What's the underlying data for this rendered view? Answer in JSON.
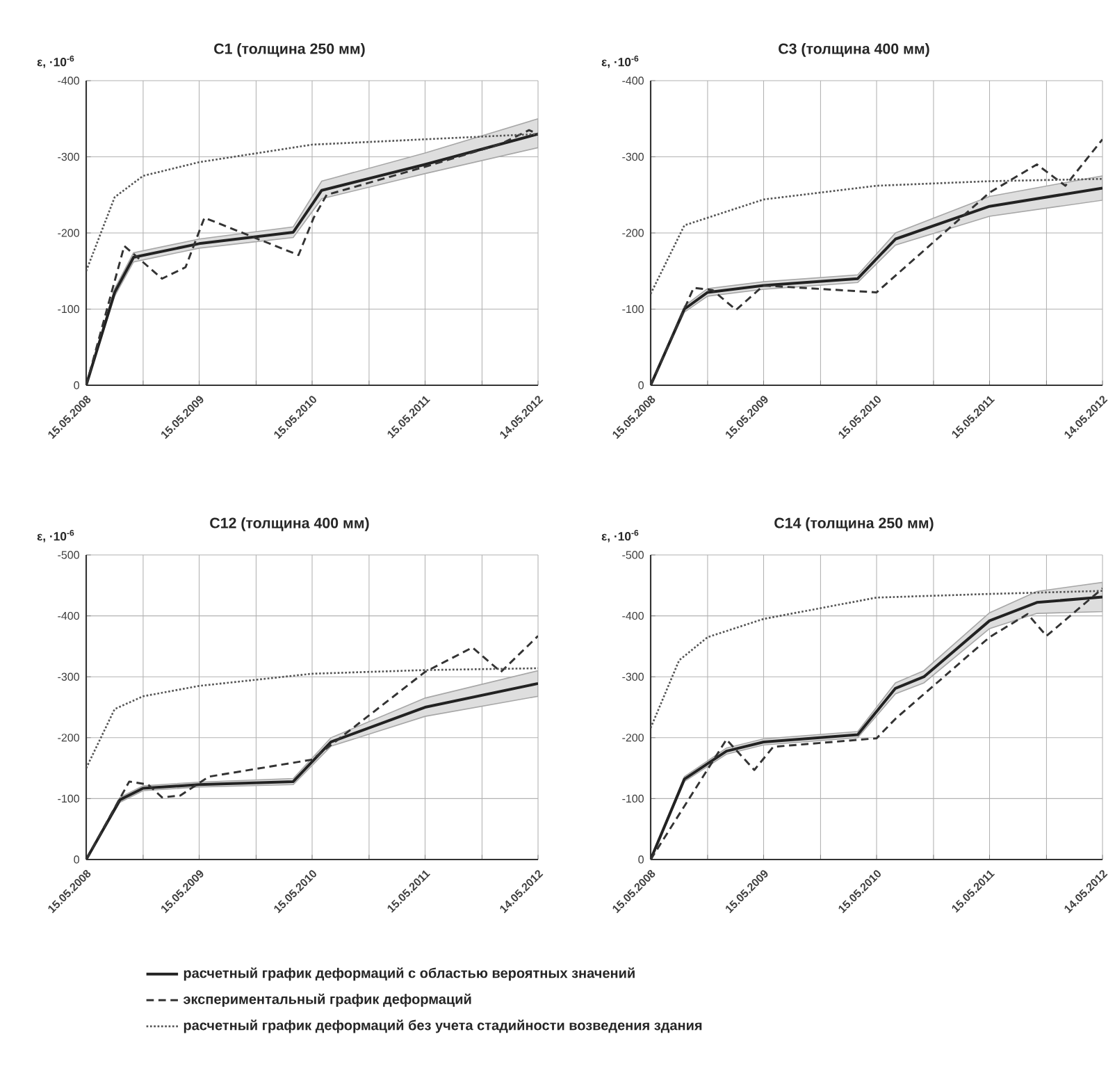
{
  "chart_data": [
    {
      "type": "line",
      "title": "C1  (толщина 250 мм)",
      "ylabel": "ε, ·10$^{-6}$",
      "xlim": [
        "2008-05-15",
        "2012-05-14"
      ],
      "ylim": [
        0,
        -400
      ],
      "yticks": [
        -400,
        -300,
        -200,
        -100,
        0
      ],
      "xticks": [
        {
          "value": "2008-05-15",
          "label": "15.05.2008"
        },
        {
          "value": "2008-11-15",
          "label": null
        },
        {
          "value": "2009-05-15",
          "label": "15.05.2009"
        },
        {
          "value": "2009-11-15",
          "label": null
        },
        {
          "value": "2010-05-15",
          "label": "15.05.2010"
        },
        {
          "value": "2010-11-15",
          "label": null
        },
        {
          "value": "2011-05-15",
          "label": "15.05.2011"
        },
        {
          "value": "2011-11-15",
          "label": null
        },
        {
          "value": "2012-05-14",
          "label": "14.05.2012"
        }
      ],
      "grid": true,
      "legend": "bottom",
      "series": [
        {
          "name": "расчетный график деформаций с областью вероятных значений",
          "color": "#222222",
          "line_style": "solid",
          "x": [
            "2008-05-15",
            "2008-08-15",
            "2008-10-15",
            "2009-05-15",
            "2010-03-15",
            "2010-06-15",
            "2011-05-15",
            "2012-05-14"
          ],
          "values": [
            0,
            -122,
            -168,
            -186,
            -201,
            -256,
            -290,
            -330
          ],
          "lower": [
            0,
            -127,
            -174,
            -192,
            -208,
            -268,
            -305,
            -350
          ],
          "upper": [
            0,
            -117,
            -162,
            -180,
            -194,
            -245,
            -278,
            -312
          ]
        },
        {
          "name": "экспериментальный график деформаций",
          "color": "#333333",
          "line_style": "dashed",
          "x": [
            "2008-05-15",
            "2008-09-15",
            "2009-01-15",
            "2009-04-01",
            "2009-06-01",
            "2010-04-01",
            "2010-05-20",
            "2010-07-01",
            "2011-05-15",
            "2012-01-15",
            "2012-04-15",
            "2012-05-14"
          ],
          "values": [
            0,
            -183,
            -140,
            -155,
            -220,
            -171,
            -220,
            -250,
            -287,
            -317,
            -335,
            -330
          ]
        },
        {
          "name": "расчетный график деформаций без учета стадийности возведения здания",
          "color": "#555555",
          "line_style": "dotted",
          "x": [
            "2008-05-15",
            "2008-08-15",
            "2008-11-15",
            "2009-05-15",
            "2010-05-15",
            "2011-05-15",
            "2012-05-14"
          ],
          "values": [
            -150,
            -247,
            -275,
            -293,
            -316,
            -323,
            -330
          ]
        }
      ]
    },
    {
      "type": "line",
      "title": "C3  (толщина 400 мм)",
      "ylabel": "ε, ·10$^{-6}$",
      "xlim": [
        "2008-05-15",
        "2012-05-14"
      ],
      "ylim": [
        0,
        -400
      ],
      "yticks": [
        -400,
        -300,
        -200,
        -100,
        0
      ],
      "xticks": [
        {
          "value": "2008-05-15",
          "label": "15.05.2008"
        },
        {
          "value": "2008-11-15",
          "label": null
        },
        {
          "value": "2009-05-15",
          "label": "15.05.2009"
        },
        {
          "value": "2009-11-15",
          "label": null
        },
        {
          "value": "2010-05-15",
          "label": "15.05.2010"
        },
        {
          "value": "2010-11-15",
          "label": null
        },
        {
          "value": "2011-05-15",
          "label": "15.05.2011"
        },
        {
          "value": "2011-11-15",
          "label": null
        },
        {
          "value": "2012-05-14",
          "label": "14.05.2012"
        }
      ],
      "grid": true,
      "series": [
        {
          "color": "#222222",
          "line_style": "solid",
          "x": [
            "2008-05-15",
            "2008-09-01",
            "2008-11-15",
            "2009-05-15",
            "2010-03-15",
            "2010-07-15",
            "2011-05-15",
            "2012-05-14"
          ],
          "values": [
            0,
            -100,
            -122,
            -131,
            -140,
            -192,
            -235,
            -259
          ],
          "lower": [
            0,
            -104,
            -127,
            -136,
            -145,
            -200,
            -248,
            -275
          ],
          "upper": [
            0,
            -96,
            -117,
            -126,
            -135,
            -184,
            -222,
            -243
          ]
        },
        {
          "color": "#333333",
          "line_style": "dashed",
          "x": [
            "2008-05-15",
            "2008-10-01",
            "2008-12-01",
            "2009-02-15",
            "2009-05-15",
            "2010-05-15",
            "2011-05-15",
            "2011-10-15",
            "2012-01-15",
            "2012-05-14"
          ],
          "values": [
            0,
            -128,
            -125,
            -99,
            -131,
            -122,
            -253,
            -290,
            -262,
            -323
          ]
        },
        {
          "color": "#555555",
          "line_style": "dotted",
          "x": [
            "2008-05-15",
            "2008-09-01",
            "2009-05-15",
            "2010-05-15",
            "2011-05-15",
            "2012-05-14"
          ],
          "values": [
            -120,
            -210,
            -244,
            -262,
            -268,
            -271
          ]
        }
      ]
    },
    {
      "type": "line",
      "title": "C12  (толщина 400 мм)",
      "ylabel": "ε, ·10$^{-6}$",
      "xlim": [
        "2008-05-15",
        "2012-05-14"
      ],
      "ylim": [
        0,
        -500
      ],
      "yticks": [
        -500,
        -400,
        -300,
        -200,
        -100,
        0
      ],
      "xticks": [
        {
          "value": "2008-05-15",
          "label": "15.05.2008"
        },
        {
          "value": "2008-11-15",
          "label": null
        },
        {
          "value": "2009-05-15",
          "label": "15.05.2009"
        },
        {
          "value": "2009-11-15",
          "label": null
        },
        {
          "value": "2010-05-15",
          "label": "15.05.2010"
        },
        {
          "value": "2010-11-15",
          "label": null
        },
        {
          "value": "2011-05-15",
          "label": "15.05.2011"
        },
        {
          "value": "2011-11-15",
          "label": null
        },
        {
          "value": "2012-05-14",
          "label": "14.05.2012"
        }
      ],
      "grid": true,
      "series": [
        {
          "color": "#222222",
          "line_style": "solid",
          "x": [
            "2008-05-15",
            "2008-09-01",
            "2008-11-15",
            "2009-05-15",
            "2010-03-15",
            "2010-07-15",
            "2011-05-15",
            "2012-05-14"
          ],
          "values": [
            0,
            -98,
            -117,
            -123,
            -128,
            -193,
            -250,
            -289
          ],
          "lower": [
            0,
            -102,
            -121,
            -127,
            -133,
            -200,
            -265,
            -310
          ],
          "upper": [
            0,
            -94,
            -113,
            -119,
            -123,
            -186,
            -235,
            -268
          ]
        },
        {
          "color": "#333333",
          "line_style": "dashed",
          "x": [
            "2008-05-15",
            "2008-10-01",
            "2008-12-01",
            "2009-01-15",
            "2009-03-15",
            "2009-06-15",
            "2010-05-15",
            "2011-05-15",
            "2011-10-15",
            "2012-01-15",
            "2012-05-14"
          ],
          "values": [
            0,
            -128,
            -123,
            -102,
            -105,
            -136,
            -164,
            -308,
            -348,
            -308,
            -367
          ]
        },
        {
          "color": "#555555",
          "line_style": "dotted",
          "x": [
            "2008-05-15",
            "2008-08-15",
            "2008-11-15",
            "2009-05-15",
            "2010-05-15",
            "2011-05-15",
            "2012-05-14"
          ],
          "values": [
            -150,
            -247,
            -268,
            -285,
            -305,
            -311,
            -314
          ]
        }
      ]
    },
    {
      "type": "line",
      "title": "C14  (толщина 250 мм)",
      "ylabel": "ε, ·10$^{-6}$",
      "xlim": [
        "2008-05-15",
        "2012-05-14"
      ],
      "ylim": [
        0,
        -500
      ],
      "yticks": [
        -500,
        -400,
        -300,
        -200,
        -100,
        0
      ],
      "xticks": [
        {
          "value": "2008-05-15",
          "label": "15.05.2008"
        },
        {
          "value": "2008-11-15",
          "label": null
        },
        {
          "value": "2009-05-15",
          "label": "15.05.2009"
        },
        {
          "value": "2009-11-15",
          "label": null
        },
        {
          "value": "2010-05-15",
          "label": "15.05.2010"
        },
        {
          "value": "2010-11-15",
          "label": null
        },
        {
          "value": "2011-05-15",
          "label": "15.05.2011"
        },
        {
          "value": "2011-11-15",
          "label": null
        },
        {
          "value": "2012-05-14",
          "label": "14.05.2012"
        }
      ],
      "grid": true,
      "series": [
        {
          "color": "#222222",
          "line_style": "solid",
          "x": [
            "2008-05-15",
            "2008-09-01",
            "2009-01-15",
            "2009-05-15",
            "2010-03-15",
            "2010-07-15",
            "2010-10-15",
            "2011-05-15",
            "2011-10-15",
            "2012-05-14"
          ],
          "values": [
            0,
            -132,
            -178,
            -193,
            -205,
            -281,
            -300,
            -392,
            -422,
            -431
          ],
          "lower": [
            0,
            -136,
            -183,
            -198,
            -210,
            -290,
            -310,
            -405,
            -440,
            -455
          ],
          "upper": [
            0,
            -128,
            -173,
            -188,
            -200,
            -272,
            -290,
            -379,
            -404,
            -407
          ]
        },
        {
          "color": "#333333",
          "line_style": "dashed",
          "x": [
            "2008-05-15",
            "2009-01-15",
            "2009-04-15",
            "2009-06-15",
            "2010-05-15",
            "2010-07-15",
            "2011-05-15",
            "2011-09-15",
            "2011-11-15",
            "2012-05-14"
          ],
          "values": [
            0,
            -197,
            -147,
            -185,
            -199,
            -231,
            -365,
            -403,
            -367,
            -445
          ]
        },
        {
          "color": "#555555",
          "line_style": "dotted",
          "x": [
            "2008-05-15",
            "2008-08-15",
            "2008-11-15",
            "2009-05-15",
            "2010-05-15",
            "2011-05-15",
            "2012-05-14"
          ],
          "values": [
            -216,
            -327,
            -365,
            -395,
            -430,
            -436,
            -441
          ]
        }
      ]
    }
  ]
}
